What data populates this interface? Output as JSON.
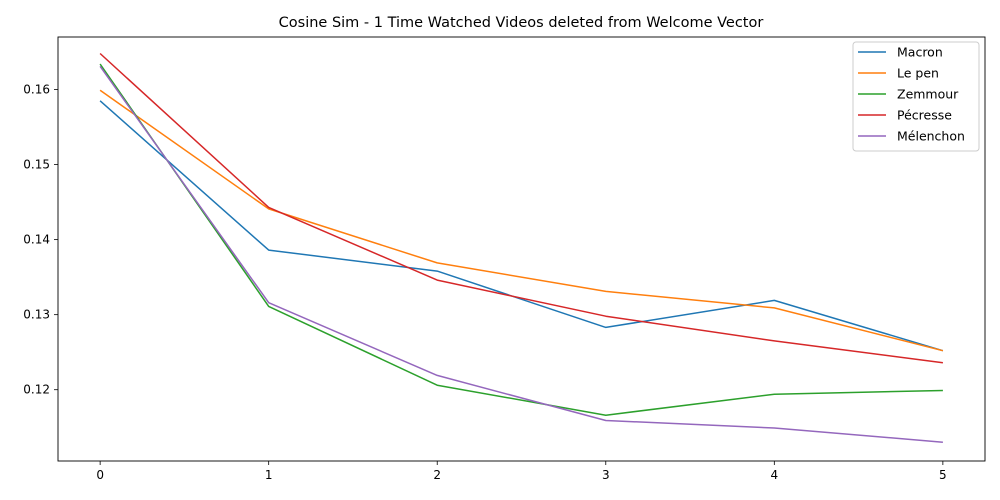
{
  "chart_data": {
    "type": "line",
    "title": "Cosine Sim - 1 Time Watched Videos deleted from Welcome Vector",
    "xlabel": "",
    "ylabel": "",
    "x": [
      0,
      1,
      2,
      3,
      4,
      5
    ],
    "xlim": [
      -0.25,
      5.25
    ],
    "ylim": [
      0.1105,
      0.167
    ],
    "xticks": [
      "0",
      "1",
      "2",
      "3",
      "4",
      "5"
    ],
    "yticks": [
      "0.12",
      "0.13",
      "0.14",
      "0.15",
      "0.16"
    ],
    "grid": false,
    "legend_position": "top-right",
    "series": [
      {
        "name": "Macron",
        "color": "#1f77b4",
        "values": [
          0.1585,
          0.1386,
          0.1358,
          0.1283,
          0.1319,
          0.1252
        ]
      },
      {
        "name": "Le pen",
        "color": "#ff7f0e",
        "values": [
          0.1599,
          0.1441,
          0.1369,
          0.1331,
          0.1309,
          0.1252
        ]
      },
      {
        "name": "Zemmour",
        "color": "#2ca02c",
        "values": [
          0.1634,
          0.1311,
          0.1206,
          0.1166,
          0.1194,
          0.1199
        ]
      },
      {
        "name": "Pécresse",
        "color": "#d62728",
        "values": [
          0.1648,
          0.1443,
          0.1346,
          0.1298,
          0.1265,
          0.1236
        ]
      },
      {
        "name": "Mélenchon",
        "color": "#9467bd",
        "values": [
          0.1631,
          0.1316,
          0.1219,
          0.1159,
          0.1149,
          0.113
        ]
      }
    ]
  }
}
